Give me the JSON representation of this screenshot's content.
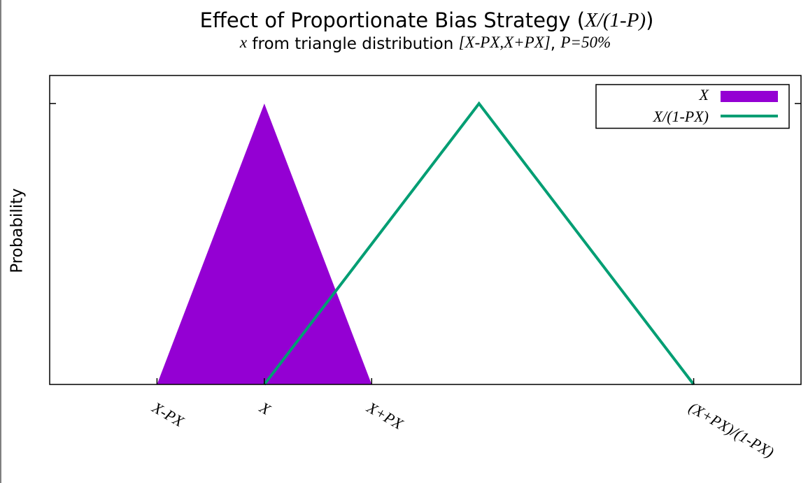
{
  "chart_data": {
    "type": "area-line",
    "title": [
      {
        "text": "Effect of Proportionate Bias Strategy (",
        "italic": false
      },
      {
        "text": "X/(1-P)",
        "italic": true
      },
      {
        "text": ")",
        "italic": false
      }
    ],
    "subtitle": [
      {
        "text": "x",
        "italic": true
      },
      {
        "text": " from triangle distribution ",
        "italic": false
      },
      {
        "text": "[X-PX,X+PX]",
        "italic": true
      },
      {
        "text": ", ",
        "italic": false
      },
      {
        "text": "P=50%",
        "italic": true
      }
    ],
    "ylabel": "Probability",
    "xlim": [
      0,
      3.5
    ],
    "ylim": [
      0,
      1.1
    ],
    "xticks": [
      {
        "value": 0.5,
        "label": "X-PX"
      },
      {
        "value": 1,
        "label": "X"
      },
      {
        "value": 1.5,
        "label": "X+PX"
      },
      {
        "value": 3,
        "label": "(X+PX)/(1-PX)"
      }
    ],
    "yticks": [
      {
        "value": 1,
        "label": null
      }
    ],
    "legend": "top-right",
    "series": [
      {
        "name": "X",
        "kind": "area",
        "color": "#9400d3",
        "x": [
          0.5,
          1,
          1.5
        ],
        "values": [
          0,
          1,
          0
        ]
      },
      {
        "name": "X/(1-PX)",
        "kind": "line",
        "color": "#009e73",
        "x": [
          1,
          2,
          3
        ],
        "values": [
          0,
          1,
          0
        ]
      }
    ]
  }
}
